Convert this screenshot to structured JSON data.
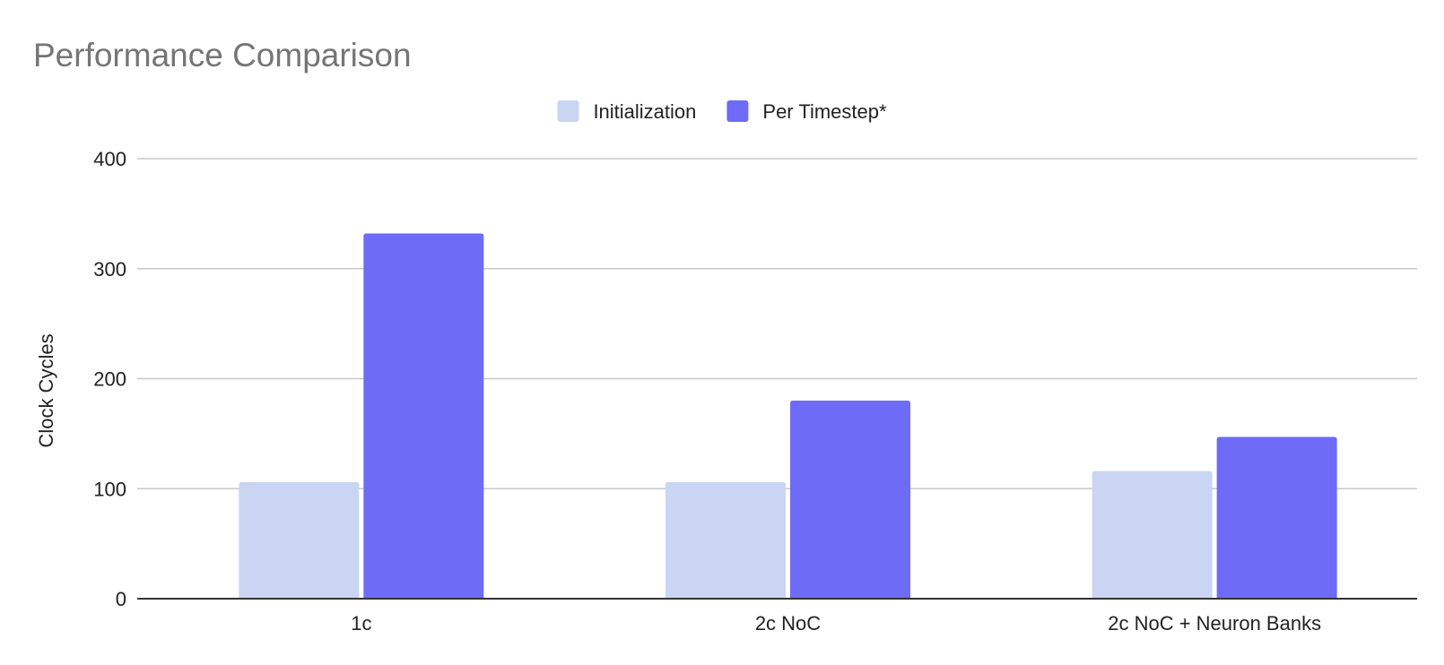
{
  "chart_data": {
    "type": "bar",
    "title": "Performance Comparison",
    "xlabel": "",
    "ylabel": "Clock Cycles",
    "categories": [
      "1c",
      "2c NoC",
      "2c NoC + Neuron Banks"
    ],
    "series": [
      {
        "name": "Initialization",
        "values": [
          106,
          106,
          116
        ],
        "color": "#c9d5f2"
      },
      {
        "name": "Per Timestep*",
        "values": [
          332,
          180,
          147
        ],
        "color": "#6e6bf7"
      }
    ],
    "ylim": [
      0,
      400
    ],
    "yticks": [
      0,
      100,
      200,
      300,
      400
    ],
    "grid": true,
    "legend_position": "top-center",
    "gridline_color": "#c8c8c8",
    "axis_color": "#333333"
  }
}
